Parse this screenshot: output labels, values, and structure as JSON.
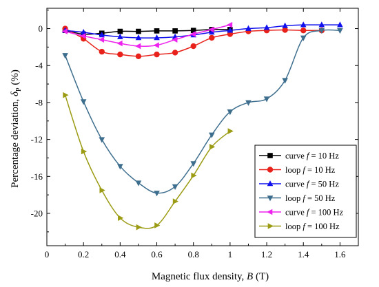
{
  "chart_data": {
    "type": "line",
    "xlabel": {
      "prefix": "Magnetic flux density, ",
      "var": "B",
      "suffix": " (T)"
    },
    "ylabel": {
      "prefix": "Percentage deviation, ",
      "var": "δ",
      "sub": "P",
      "suffix": " (%)"
    },
    "xlim": [
      0,
      1.7
    ],
    "ylim": [
      -23.5,
      2.2
    ],
    "xticks": [
      0,
      0.2,
      0.4,
      0.6,
      0.8,
      1.0,
      1.2,
      1.4,
      1.6
    ],
    "xtick_labels": [
      "0",
      "0.2",
      "0.4",
      "0.6",
      "0.8",
      "1",
      "1.2",
      "1.4",
      "1.6"
    ],
    "yticks": [
      0,
      -4,
      -8,
      -12,
      -16,
      -20
    ],
    "ytick_labels": [
      "0",
      "-4",
      "-8",
      "-12",
      "-16",
      "-20"
    ],
    "grid": false,
    "legend_position": "middle-right",
    "series": [
      {
        "name": "curve f = 10 Hz",
        "legend": {
          "pre": "curve ",
          "var": "f",
          "post": " = 10 Hz"
        },
        "color": "#000000",
        "marker": "square",
        "x": [
          0.1,
          0.2,
          0.3,
          0.4,
          0.5,
          0.6,
          0.7,
          0.8,
          0.9,
          1.0
        ],
        "y": [
          -0.2,
          -0.6,
          -0.5,
          -0.3,
          -0.3,
          -0.25,
          -0.25,
          -0.2,
          -0.1,
          -0.1
        ]
      },
      {
        "name": "loop f = 10 Hz",
        "legend": {
          "pre": "loop ",
          "var": "f",
          "post": " = 10 Hz"
        },
        "color": "#e8221b",
        "marker": "circle",
        "x": [
          0.1,
          0.2,
          0.3,
          0.4,
          0.5,
          0.6,
          0.7,
          0.8,
          0.9,
          1.0,
          1.1,
          1.2,
          1.3,
          1.4,
          1.5
        ],
        "y": [
          0.0,
          -1.1,
          -2.5,
          -2.8,
          -3.0,
          -2.8,
          -2.6,
          -1.9,
          -1.0,
          -0.6,
          -0.3,
          -0.2,
          -0.15,
          -0.2,
          -0.2
        ]
      },
      {
        "name": "curve f = 50 Hz",
        "legend": {
          "pre": "curve ",
          "var": "f",
          "post": " = 50 Hz"
        },
        "color": "#1111ee",
        "marker": "triangle-up",
        "x": [
          0.1,
          0.2,
          0.3,
          0.4,
          0.5,
          0.6,
          0.7,
          0.8,
          0.9,
          1.0,
          1.1,
          1.2,
          1.3,
          1.4,
          1.5,
          1.6
        ],
        "y": [
          -0.2,
          -0.4,
          -0.7,
          -0.9,
          -1.0,
          -1.0,
          -0.9,
          -0.7,
          -0.4,
          -0.2,
          0.0,
          0.1,
          0.3,
          0.4,
          0.4,
          0.4
        ]
      },
      {
        "name": "loop f = 50 Hz",
        "legend": {
          "pre": "loop ",
          "var": "f",
          "post": " = 50 Hz"
        },
        "color": "#3e6e8e",
        "marker": "triangle-down",
        "x": [
          0.1,
          0.2,
          0.3,
          0.4,
          0.5,
          0.6,
          0.7,
          0.8,
          0.9,
          1.0,
          1.1,
          1.2,
          1.3,
          1.4,
          1.5,
          1.6
        ],
        "y": [
          -2.9,
          -7.9,
          -12.0,
          -14.9,
          -16.7,
          -17.8,
          -17.1,
          -14.6,
          -11.5,
          -9.0,
          -8.0,
          -7.6,
          -5.6,
          -1.0,
          -0.2,
          -0.2
        ]
      },
      {
        "name": "curve f = 100 Hz",
        "legend": {
          "pre": "curve ",
          "var": "f",
          "post": " = 100 Hz"
        },
        "color": "#ee22ee",
        "marker": "triangle-left",
        "x": [
          0.1,
          0.2,
          0.3,
          0.4,
          0.5,
          0.6,
          0.7,
          0.8,
          0.9,
          1.0
        ],
        "y": [
          -0.3,
          -0.8,
          -1.2,
          -1.6,
          -1.9,
          -1.8,
          -1.2,
          -0.6,
          -0.1,
          0.4
        ]
      },
      {
        "name": "loop f = 100 Hz",
        "legend": {
          "pre": "loop ",
          "var": "f",
          "post": " = 100 Hz"
        },
        "color": "#9b9b14",
        "marker": "triangle-right",
        "x": [
          0.1,
          0.2,
          0.3,
          0.4,
          0.5,
          0.6,
          0.7,
          0.8,
          0.9,
          1.0
        ],
        "y": [
          -7.2,
          -13.3,
          -17.5,
          -20.5,
          -21.5,
          -21.3,
          -18.7,
          -15.9,
          -12.8,
          -11.1
        ]
      }
    ]
  }
}
